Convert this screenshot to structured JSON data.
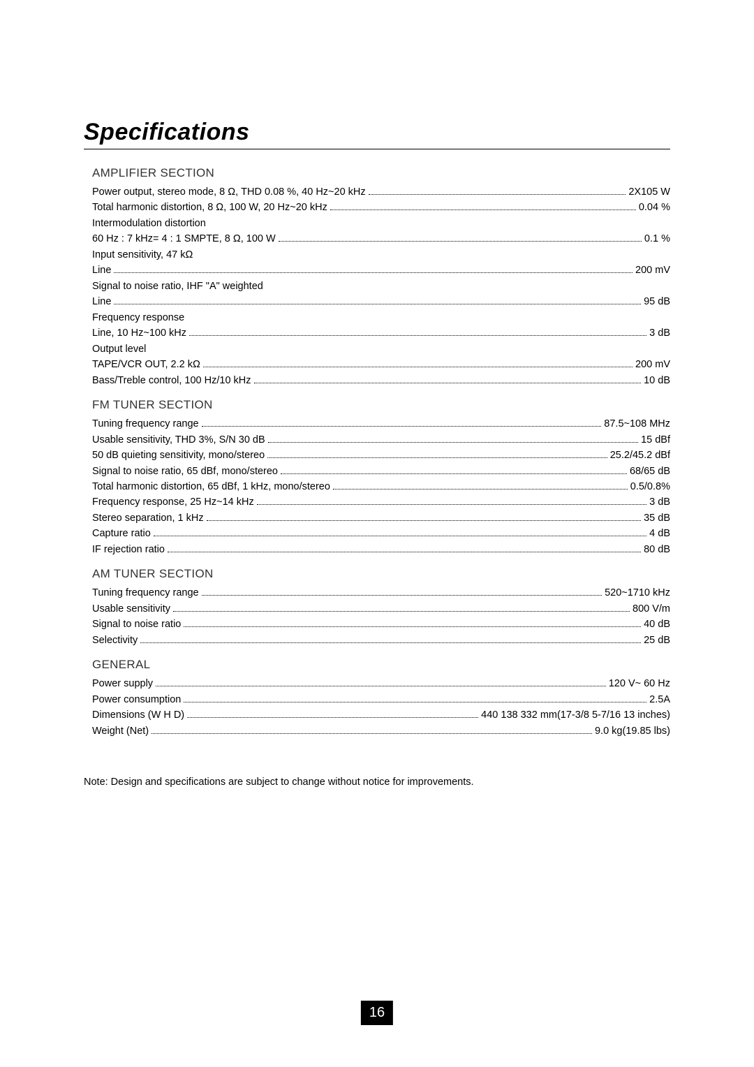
{
  "title": "Specifications",
  "sections": [
    {
      "heading": "AMPLIFIER SECTION",
      "items": [
        {
          "type": "kv",
          "label": "Power output, stereo mode, 8 Ω, THD 0.08 %, 40 Hz~20 kHz",
          "value": "2X105 W"
        },
        {
          "type": "kv",
          "label": "Total harmonic distortion, 8 Ω, 100 W,  20 Hz~20 kHz",
          "value": "0.04 %"
        },
        {
          "type": "sub",
          "label": "Intermodulation distortion"
        },
        {
          "type": "kv",
          "label": "60 Hz : 7 kHz= 4 : 1 SMPTE, 8 Ω, 100 W",
          "value": "0.1 %"
        },
        {
          "type": "sub",
          "label": "Input sensitivity, 47 kΩ"
        },
        {
          "type": "kv",
          "label": "Line",
          "value": "200 mV"
        },
        {
          "type": "sub",
          "label": "Signal to noise ratio, IHF \"A\" weighted"
        },
        {
          "type": "kv",
          "label": "Line",
          "value": "95 dB"
        },
        {
          "type": "sub",
          "label": "Frequency response"
        },
        {
          "type": "kv",
          "label": " Line, 10 Hz~100 kHz",
          "value": "  3 dB"
        },
        {
          "type": "sub",
          "label": "Output level"
        },
        {
          "type": "kv",
          "label": "TAPE/VCR OUT, 2.2 kΩ",
          "value": "200 mV"
        },
        {
          "type": "kv",
          "label": "Bass/Treble control, 100 Hz/10 kHz",
          "value": "  10 dB"
        }
      ]
    },
    {
      "heading": "FM TUNER SECTION",
      "items": [
        {
          "type": "kv",
          "label": "Tuning frequency range",
          "value": "87.5~108 MHz"
        },
        {
          "type": "kv",
          "label": "Usable sensitivity, THD 3%, S/N 30 dB",
          "value": "15 dBf"
        },
        {
          "type": "kv",
          "label": "50 dB quieting sensitivity, mono/stereo",
          "value": "25.2/45.2 dBf"
        },
        {
          "type": "kv",
          "label": "Signal to noise ratio, 65 dBf, mono/stereo",
          "value": "68/65 dB"
        },
        {
          "type": "kv",
          "label": "Total harmonic distortion, 65 dBf, 1 kHz, mono/stereo",
          "value": "0.5/0.8%"
        },
        {
          "type": "kv",
          "label": "Frequency response, 25 Hz~14 kHz",
          "value": "  3 dB"
        },
        {
          "type": "kv",
          "label": "Stereo separation, 1 kHz",
          "value": "35 dB"
        },
        {
          "type": "kv",
          "label": "Capture ratio",
          "value": "4 dB"
        },
        {
          "type": "kv",
          "label": "IF rejection ratio",
          "value": "80 dB"
        }
      ]
    },
    {
      "heading": "AM TUNER SECTION",
      "items": [
        {
          "type": "kv",
          "label": "Tuning frequency range",
          "value": "520~1710 kHz"
        },
        {
          "type": "kv",
          "label": "Usable sensitivity",
          "value": "800  V/m"
        },
        {
          "type": "kv",
          "label": "Signal to noise ratio",
          "value": "40 dB"
        },
        {
          "type": "kv",
          "label": "Selectivity",
          "value": "25 dB"
        }
      ]
    },
    {
      "heading": "GENERAL",
      "items": [
        {
          "type": "kv",
          "label": "Power supply",
          "value": "120 V~ 60 Hz"
        },
        {
          "type": "kv",
          "label": "Power consumption",
          "value": "2.5A"
        },
        {
          "type": "kv",
          "label": "Dimensions (W   H   D)",
          "value": "440   138   332 mm(17-3/8   5-7/16   13 inches)"
        },
        {
          "type": "kv",
          "label": "Weight (Net)",
          "value": "9.0 kg(19.85 lbs)"
        }
      ]
    }
  ],
  "note": "Note: Design and specifications are subject to change without notice for improvements.",
  "page_number": "16"
}
